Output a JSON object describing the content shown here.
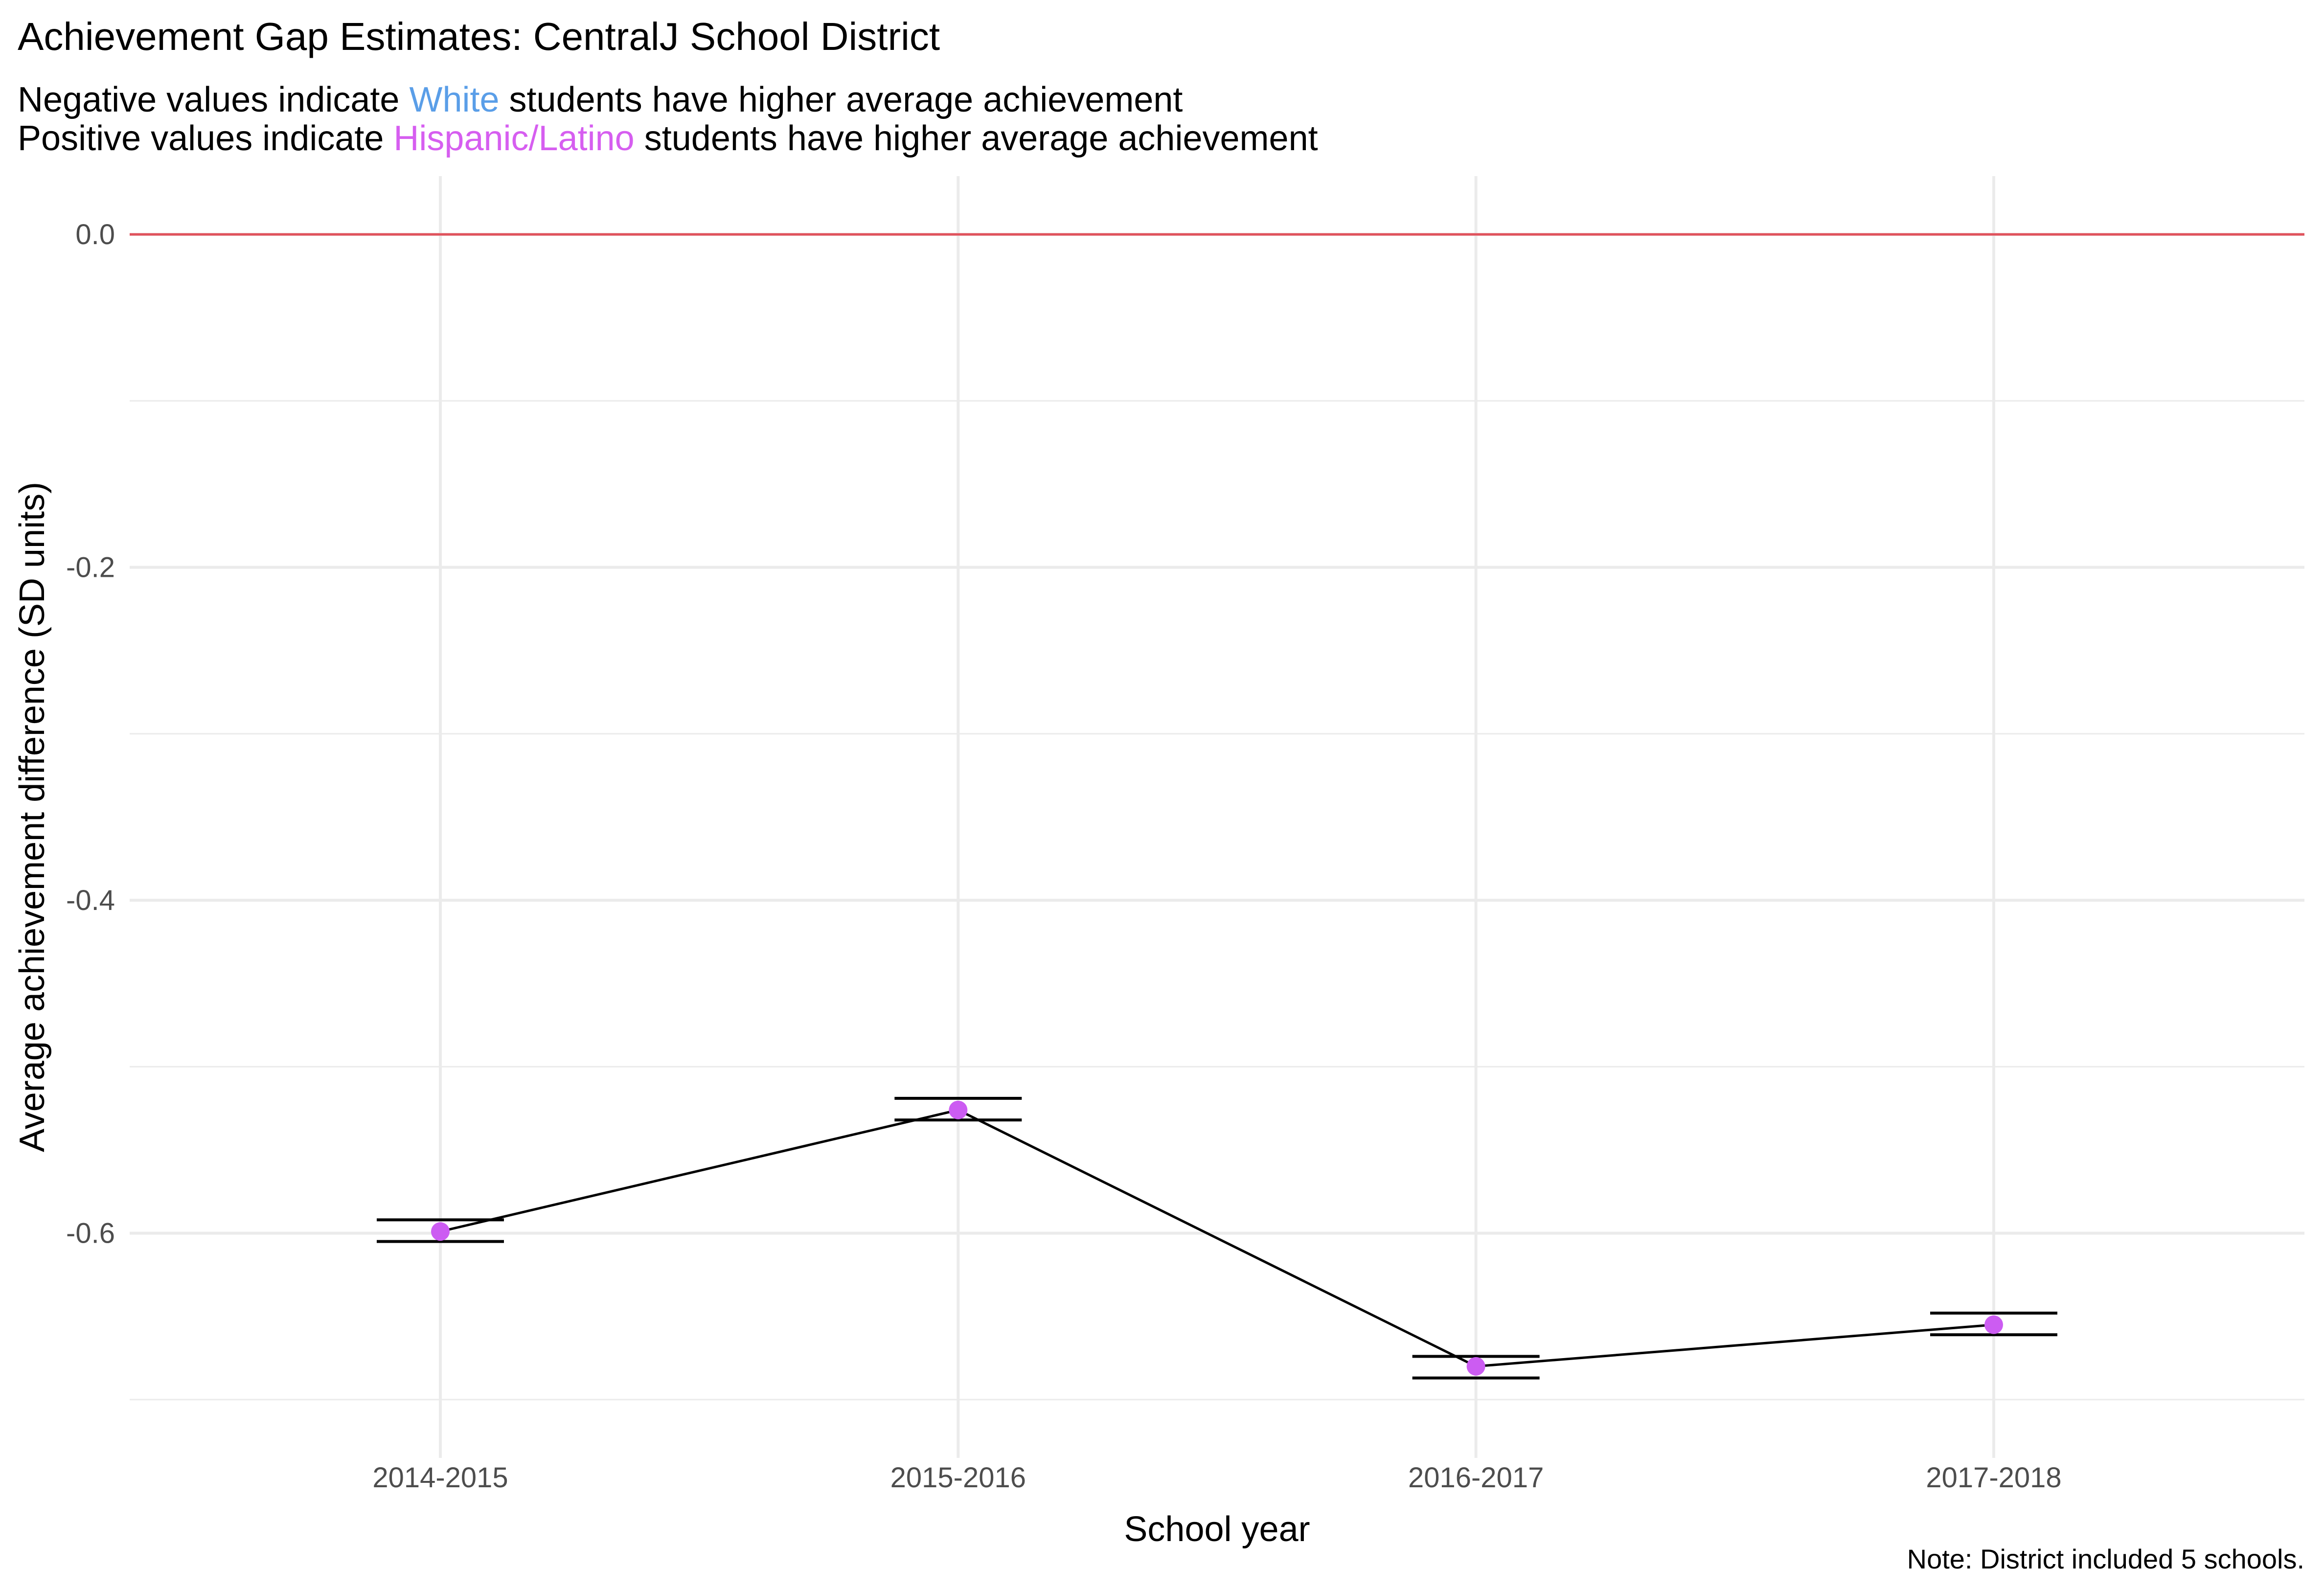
{
  "chart_data": {
    "type": "line",
    "title": "Achievement Gap Estimates: CentralJ School District",
    "subtitle": {
      "line1": {
        "before": "Negative values indicate ",
        "highlight": "White",
        "after": " students have higher average achievement"
      },
      "line2": {
        "before": "Positive values indicate ",
        "highlight": "Hispanic/Latino",
        "after": " students have higher average achievement"
      }
    },
    "xlabel": "School year",
    "ylabel": "Average achievement difference (SD units)",
    "caption": "Note: District included 5 schools.",
    "categories": [
      "2014-2015",
      "2015-2016",
      "2016-2017",
      "2017-2018"
    ],
    "series": [
      {
        "values": [
          -0.599,
          -0.526,
          -0.68,
          -0.655
        ],
        "error_low": [
          -0.605,
          -0.532,
          -0.687,
          -0.661
        ],
        "error_high": [
          -0.592,
          -0.519,
          -0.674,
          -0.648
        ]
      }
    ],
    "reference_line": 0.0,
    "ylim": [
      -0.735,
      0.035
    ],
    "yticks": [
      0.0,
      -0.2,
      -0.4,
      -0.6
    ],
    "ytick_labels": [
      "0.0",
      "-0.2",
      "-0.4",
      "-0.6"
    ],
    "minor_gridlines_y": [
      -0.1,
      -0.3,
      -0.5,
      -0.7
    ],
    "grid": true,
    "colors": {
      "white_highlight": "#5a9ee8",
      "hispanic_highlight": "#d65ef0",
      "point": "#cc5cf2",
      "reference_line": "#e0525c",
      "series_line": "#000000",
      "gridline": "#ebebeb"
    }
  }
}
